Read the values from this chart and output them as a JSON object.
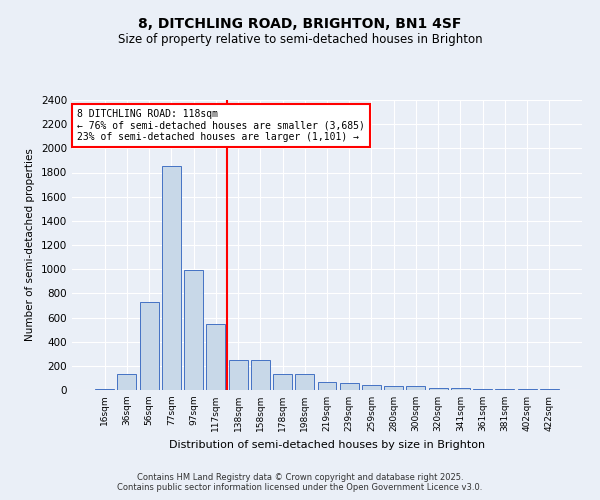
{
  "title": "8, DITCHLING ROAD, BRIGHTON, BN1 4SF",
  "subtitle": "Size of property relative to semi-detached houses in Brighton",
  "xlabel": "Distribution of semi-detached houses by size in Brighton",
  "ylabel": "Number of semi-detached properties",
  "footnote": "Contains HM Land Registry data © Crown copyright and database right 2025.\nContains public sector information licensed under the Open Government Licence v3.0.",
  "bin_labels": [
    "16sqm",
    "36sqm",
    "56sqm",
    "77sqm",
    "97sqm",
    "117sqm",
    "138sqm",
    "158sqm",
    "178sqm",
    "198sqm",
    "219sqm",
    "239sqm",
    "259sqm",
    "280sqm",
    "300sqm",
    "320sqm",
    "341sqm",
    "361sqm",
    "381sqm",
    "402sqm",
    "422sqm"
  ],
  "bar_values": [
    10,
    130,
    730,
    1850,
    990,
    550,
    250,
    245,
    130,
    130,
    70,
    55,
    40,
    30,
    30,
    20,
    15,
    5,
    5,
    5,
    5
  ],
  "bar_color": "#c8d8e8",
  "bar_edge_color": "#4472c4",
  "vline_x": 5.5,
  "vline_color": "red",
  "annotation_text": "8 DITCHLING ROAD: 118sqm\n← 76% of semi-detached houses are smaller (3,685)\n23% of semi-detached houses are larger (1,101) →",
  "annotation_box_color": "white",
  "annotation_box_edge_color": "red",
  "ylim": [
    0,
    2400
  ],
  "yticks": [
    0,
    200,
    400,
    600,
    800,
    1000,
    1200,
    1400,
    1600,
    1800,
    2000,
    2200,
    2400
  ],
  "bg_color": "#eaeff7",
  "plot_bg_color": "#eaeff7"
}
